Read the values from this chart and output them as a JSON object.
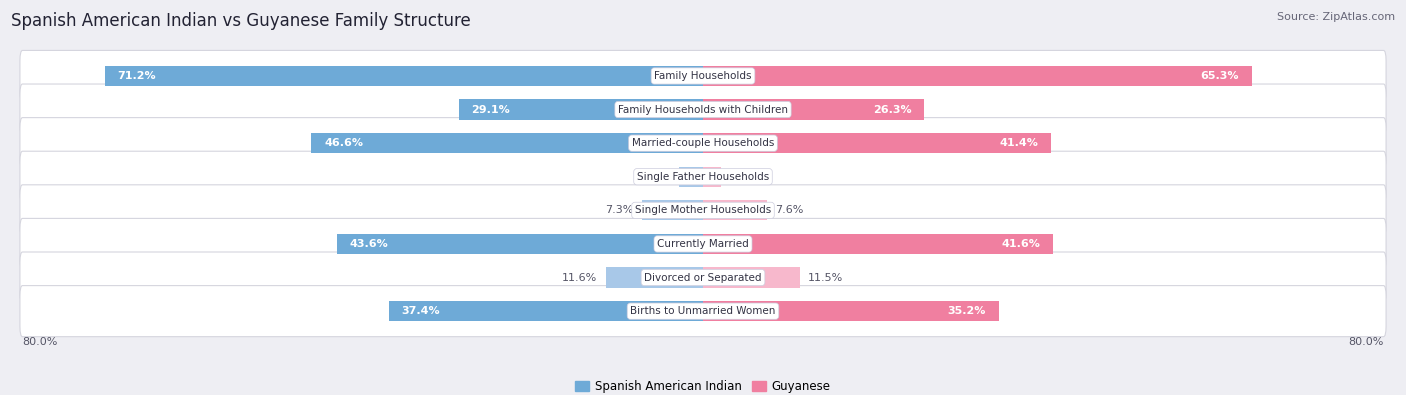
{
  "title": "Spanish American Indian vs Guyanese Family Structure",
  "source": "Source: ZipAtlas.com",
  "categories": [
    "Family Households",
    "Family Households with Children",
    "Married-couple Households",
    "Single Father Households",
    "Single Mother Households",
    "Currently Married",
    "Divorced or Separated",
    "Births to Unmarried Women"
  ],
  "left_values": [
    71.2,
    29.1,
    46.6,
    2.9,
    7.3,
    43.6,
    11.6,
    37.4
  ],
  "right_values": [
    65.3,
    26.3,
    41.4,
    2.1,
    7.6,
    41.6,
    11.5,
    35.2
  ],
  "left_color": "#6eaad7",
  "right_color": "#f07fa0",
  "left_color_light": "#a8c8e8",
  "right_color_light": "#f7b8cc",
  "max_value": 80.0,
  "bg_color": "#eeeef3",
  "row_bg_color": "#f5f5f8",
  "legend_left": "Spanish American Indian",
  "legend_right": "Guyanese",
  "title_fontsize": 12,
  "source_fontsize": 8,
  "label_fontsize": 8,
  "category_fontsize": 7.5,
  "axis_label_fontsize": 8
}
